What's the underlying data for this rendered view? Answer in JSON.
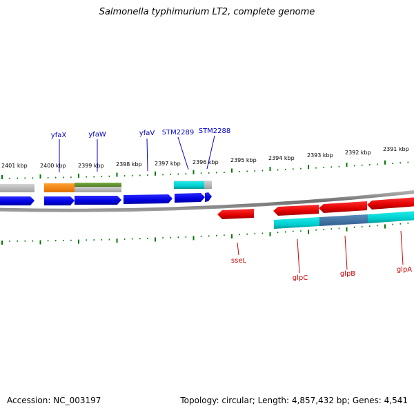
{
  "title": "Salmonella typhimurium LT2, complete genome",
  "footer": {
    "accession": "Accession: NC_003197",
    "summary": "Topology: circular; Length: 4,857,432 bp; Genes: 4,541"
  },
  "kbp_labels": [
    "2401 kbp",
    "2400 kbp",
    "2399 kbp",
    "2398 kbp",
    "2397 kbp",
    "2396 kbp",
    "2395 kbp",
    "2394 kbp",
    "2393 kbp",
    "2392 kbp",
    "2391 kbp"
  ],
  "top_gene_labels": [
    "yfaX",
    "yfaW",
    "yfaV",
    "STM2289",
    "STM2288"
  ],
  "bottom_gene_labels": [
    "sseL",
    "glpC",
    "glpB",
    "glpA"
  ],
  "colors": {
    "forward_gene": "#0000ee",
    "reverse_gene": "#ee0000",
    "top_label": "#0000cc",
    "bottom_label": "#cc0000",
    "tick": "#007700",
    "backbone": "#808080",
    "orange_feature": "#ff8800",
    "olive_feature": "#669933",
    "cyan_feature": "#00cccc",
    "steel_feature": "#4477aa",
    "gray_feature": "#bbbbbb"
  }
}
